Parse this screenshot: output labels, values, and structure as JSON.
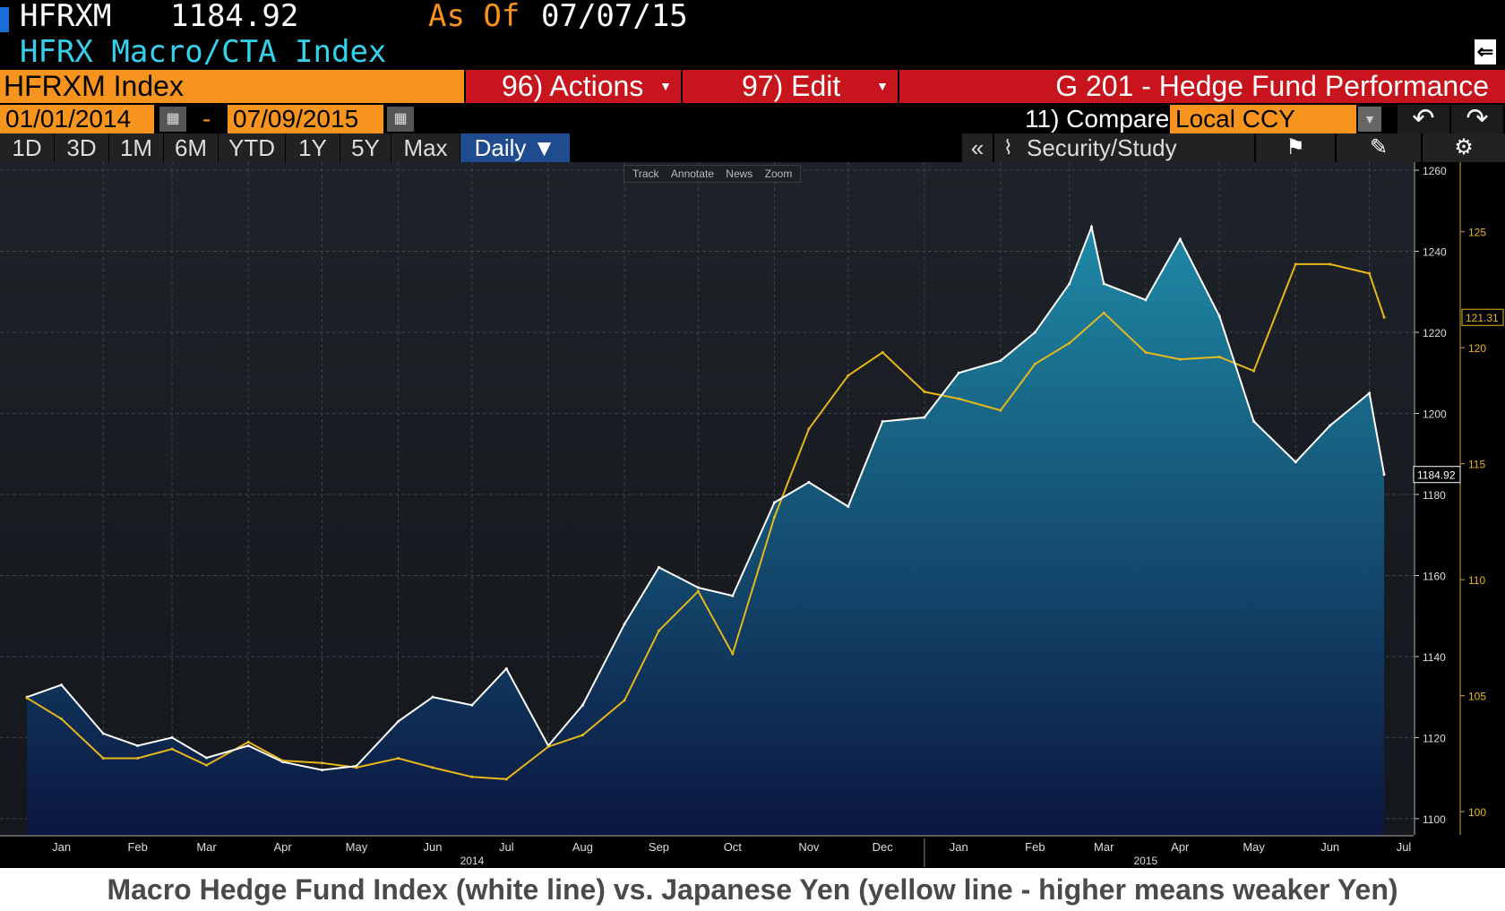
{
  "header": {
    "ticker": "HFRXM",
    "price": "1184.92",
    "as_of_label": "As Of",
    "as_of_date": "07/07/15",
    "index_name": "HFRX Macro/CTA Index"
  },
  "toolbar": {
    "security": "HFRXM Index",
    "actions_label": "96) Actions",
    "edit_label": "97) Edit",
    "page_title": "G 201 - Hedge Fund Performance",
    "start_date": "01/01/2014",
    "date_separator": "-",
    "end_date": "07/09/2015",
    "compare_label": "11) Compare",
    "currency": "Local CCY",
    "periods": [
      "1D",
      "3D",
      "1M",
      "6M",
      "YTD",
      "1Y",
      "5Y",
      "Max"
    ],
    "frequency": "Daily ▼",
    "collapse_label": "«",
    "study_label": "Security/Study",
    "chart_tools": [
      "Track",
      "Annotate",
      "News",
      "Zoom"
    ]
  },
  "caption": "Macro Hedge Fund Index (white line) vs. Japanese Yen (yellow line - higher means weaker Yen)",
  "colors": {
    "orange": "#f7941d",
    "red": "#c8151d",
    "cyan_title": "#34d2ec",
    "hfrx_line": "#ffffff",
    "yen_line": "#e8b71a",
    "area_top": "#1e8aa6",
    "area_bottom": "#0b1640"
  },
  "chart_data": {
    "type": "line",
    "title": "",
    "x_tick_labels": [
      "Jan",
      "Feb",
      "Mar",
      "Apr",
      "May",
      "Jun",
      "Jul",
      "Aug",
      "Sep",
      "Oct",
      "Nov",
      "Dec",
      "Jan",
      "Feb",
      "Mar",
      "Apr",
      "May",
      "Jun",
      "Jul"
    ],
    "year_labels": [
      "2014",
      "2015"
    ],
    "y_left_note": "",
    "y_right_ticks": [
      1100,
      1120,
      1140,
      1160,
      1180,
      1200,
      1220,
      1240,
      1260
    ],
    "y_right_range": [
      1096,
      1262
    ],
    "y_right2_ticks": [
      100,
      105,
      110,
      115,
      120,
      125
    ],
    "y_right2_range": [
      99,
      128
    ],
    "last_values": {
      "hfrx": "1184.92",
      "yen": "121.31"
    },
    "grid": true,
    "series": [
      {
        "name": "",
        "axis": "right",
        "style": "white line with teal area",
        "x": [
          "2014-01-01",
          "2014-01-15",
          "2014-02-01",
          "2014-02-15",
          "2014-03-01",
          "2014-03-15",
          "2014-04-01",
          "2014-04-15",
          "2014-05-01",
          "2014-05-15",
          "2014-06-01",
          "2014-06-15",
          "2014-07-01",
          "2014-07-15",
          "2014-08-01",
          "2014-08-15",
          "2014-09-01",
          "2014-09-15",
          "2014-10-01",
          "2014-10-15",
          "2014-11-01",
          "2014-11-15",
          "2014-12-01",
          "2014-12-15",
          "2015-01-01",
          "2015-01-15",
          "2015-02-01",
          "2015-02-15",
          "2015-03-01",
          "2015-03-10",
          "2015-03-15",
          "2015-04-01",
          "2015-04-15",
          "2015-05-01",
          "2015-05-15",
          "2015-06-01",
          "2015-06-15",
          "2015-07-01",
          "2015-07-07"
        ],
        "values": [
          1130,
          1133,
          1121,
          1118,
          1120,
          1115,
          1118,
          1114,
          1112,
          1113,
          1124,
          1130,
          1128,
          1137,
          1118,
          1128,
          1148,
          1162,
          1157,
          1155,
          1178,
          1183,
          1177,
          1198,
          1199,
          1210,
          1213,
          1220,
          1232,
          1246,
          1232,
          1228,
          1243,
          1224,
          1198,
          1188,
          1197,
          1205,
          1184.92
        ]
      },
      {
        "name": "",
        "axis": "right2",
        "style": "yellow line",
        "x": [
          "2014-01-01",
          "2014-01-15",
          "2014-02-01",
          "2014-02-15",
          "2014-03-01",
          "2014-03-15",
          "2014-04-01",
          "2014-04-15",
          "2014-05-01",
          "2014-05-15",
          "2014-06-01",
          "2014-06-15",
          "2014-07-01",
          "2014-07-15",
          "2014-08-01",
          "2014-08-15",
          "2014-09-01",
          "2014-09-15",
          "2014-10-01",
          "2014-10-15",
          "2014-11-01",
          "2014-11-15",
          "2014-12-01",
          "2014-12-15",
          "2015-01-01",
          "2015-01-15",
          "2015-02-01",
          "2015-02-15",
          "2015-03-01",
          "2015-03-15",
          "2015-04-01",
          "2015-04-15",
          "2015-05-01",
          "2015-05-15",
          "2015-06-01",
          "2015-06-15",
          "2015-07-01",
          "2015-07-07"
        ],
        "values": [
          104.9,
          104.0,
          102.3,
          102.3,
          102.7,
          102.0,
          103.0,
          102.2,
          102.1,
          101.9,
          102.3,
          101.9,
          101.5,
          101.4,
          102.8,
          103.3,
          104.8,
          107.8,
          109.5,
          106.8,
          112.7,
          116.5,
          118.8,
          119.8,
          118.1,
          117.8,
          117.3,
          119.3,
          120.2,
          121.5,
          119.8,
          119.5,
          119.6,
          119.0,
          123.6,
          123.6,
          123.2,
          121.31
        ]
      }
    ]
  }
}
